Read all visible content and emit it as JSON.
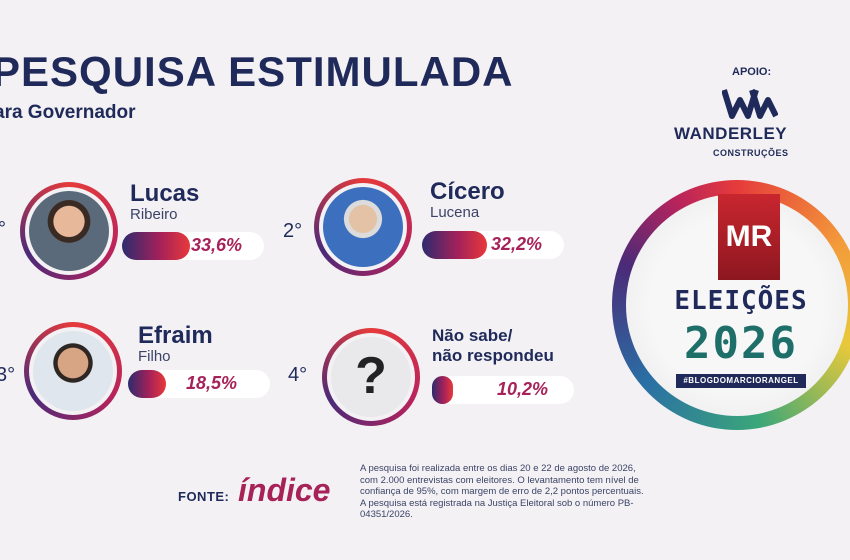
{
  "header": {
    "title": "PESQUISA ESTIMULADA",
    "subtitle": "ara Governador"
  },
  "sponsor": {
    "label": "APOIO:",
    "logo_icon": "wanderley-logo-icon",
    "name": "WANDERLEY",
    "sub": "CONSTRUÇÕES"
  },
  "candidates": [
    {
      "rank": "°",
      "first": "Lucas",
      "last": "Ribeiro",
      "percent_text": "33,6%",
      "percent": 33.6
    },
    {
      "rank": "2°",
      "first": "Cícero",
      "last": "Lucena",
      "percent_text": "32,2%",
      "percent": 32.2
    },
    {
      "rank": "3°",
      "first": "Efraim",
      "last": "Filho",
      "percent_text": "18,5%",
      "percent": 18.5
    },
    {
      "rank": "4°",
      "first": "Não sabe/",
      "last": "não respondeu",
      "percent_text": "10,2%",
      "percent": 10.2,
      "icon": "?"
    }
  ],
  "footer": {
    "fonte_label": "FONTE:",
    "fonte_logo": "índice",
    "note": "A pesquisa foi realizada entre os dias 20 e 22 de agosto de 2026, com 2.000 entrevistas com eleitores. O levantamento tem nível de confiança de 95%, com margem de erro de 2,2 pontos percentuais. A pesquisa está registrada na Justiça Eleitoral sob o número PB-04351/2026."
  },
  "badge": {
    "mr": "MR",
    "eleicoes": "ELEIÇÕES",
    "year": "2026",
    "hashtag": "#BLOGDOMARCIORANGEL"
  },
  "colors": {
    "navy": "#1f2a5a",
    "magenta": "#a72259",
    "red": "#e8393a",
    "background": "#f3f1f3"
  }
}
